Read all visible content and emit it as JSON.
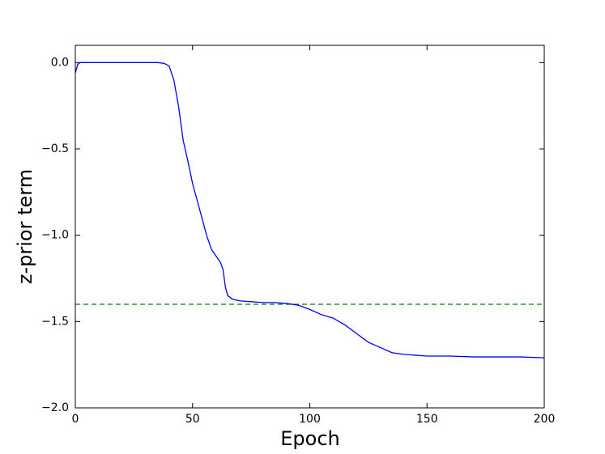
{
  "chart_data": {
    "type": "line",
    "xlabel": "Epoch",
    "ylabel": "z-prior term",
    "x": [
      0,
      1,
      2,
      5,
      10,
      15,
      20,
      25,
      30,
      35,
      38,
      40,
      42,
      44,
      46,
      48,
      50,
      52,
      54,
      56,
      58,
      60,
      62,
      63,
      64,
      65,
      67,
      70,
      75,
      80,
      85,
      90,
      95,
      100,
      105,
      110,
      115,
      120,
      125,
      130,
      135,
      140,
      145,
      150,
      160,
      170,
      180,
      190,
      200
    ],
    "series": [
      {
        "color": "#0000ff",
        "values": [
          -0.06,
          -0.01,
          0,
          0,
          0,
          0,
          0,
          0,
          0,
          0,
          -0.005,
          -0.02,
          -0.1,
          -0.25,
          -0.45,
          -0.57,
          -0.7,
          -0.8,
          -0.9,
          -1.0,
          -1.08,
          -1.12,
          -1.16,
          -1.2,
          -1.3,
          -1.35,
          -1.37,
          -1.38,
          -1.385,
          -1.39,
          -1.39,
          -1.395,
          -1.405,
          -1.43,
          -1.46,
          -1.48,
          -1.52,
          -1.57,
          -1.62,
          -1.65,
          -1.68,
          -1.69,
          -1.695,
          -1.7,
          -1.7,
          -1.705,
          -1.705,
          -1.705,
          -1.71
        ]
      }
    ],
    "hline": {
      "value": -1.4,
      "color": "#008000",
      "dashed": true
    },
    "xlim": [
      0,
      200
    ],
    "xticks": [
      0,
      50,
      100,
      150,
      200
    ],
    "ylim": [
      -2.0,
      0.1
    ],
    "yticks": [
      {
        "value": -2.0,
        "label": "−2.0"
      },
      {
        "value": -1.5,
        "label": "−1.5"
      },
      {
        "value": -1.0,
        "label": "−1.0"
      },
      {
        "value": -0.5,
        "label": "−0.5"
      },
      {
        "value": 0.0,
        "label": "0.0"
      }
    ]
  }
}
